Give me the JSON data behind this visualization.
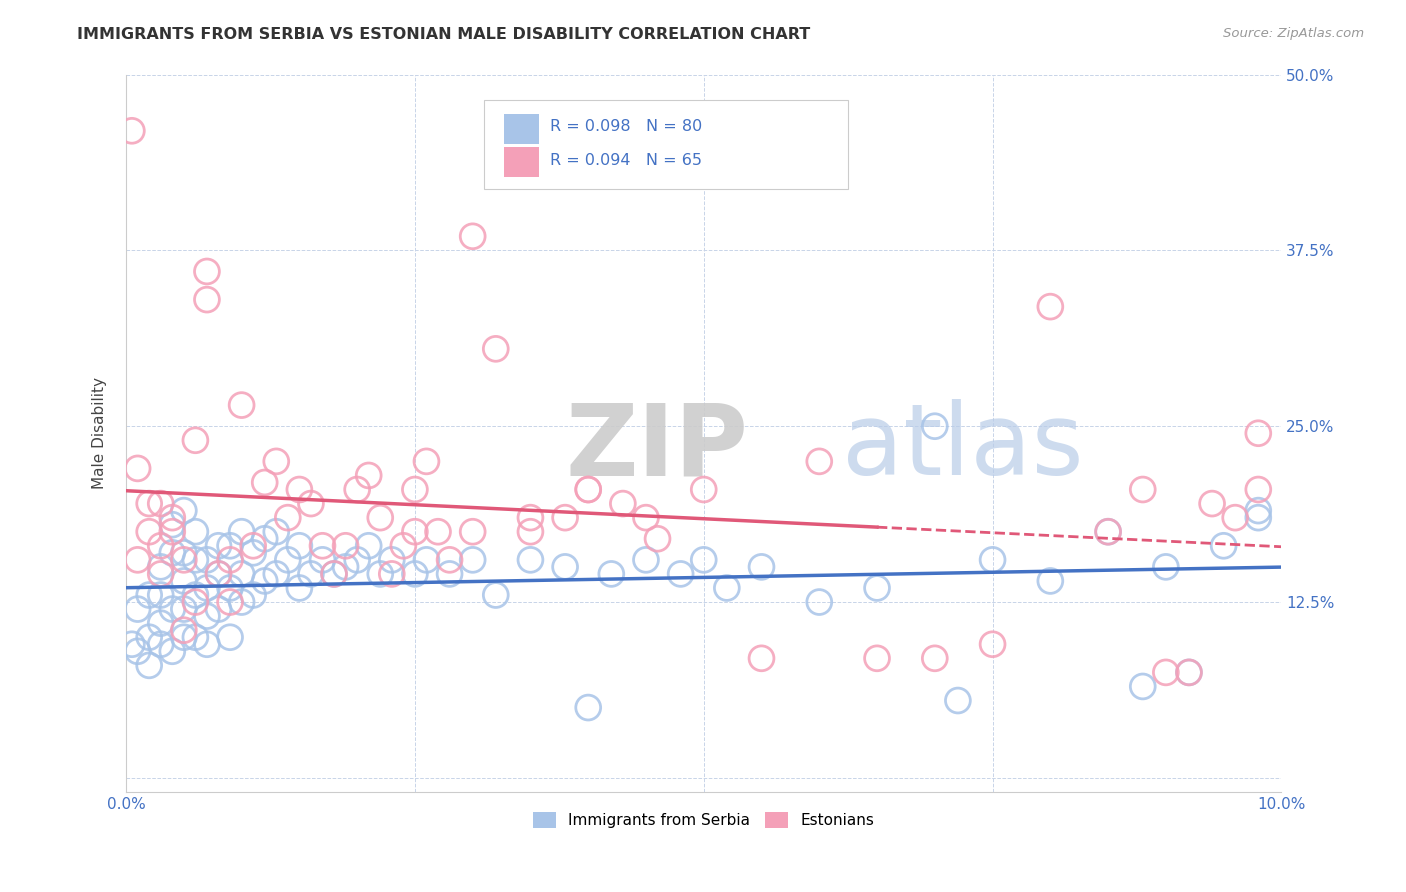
{
  "title": "IMMIGRANTS FROM SERBIA VS ESTONIAN MALE DISABILITY CORRELATION CHART",
  "source": "Source: ZipAtlas.com",
  "ylabel": "Male Disability",
  "legend_label1": "Immigrants from Serbia",
  "legend_label2": "Estonians",
  "R1": 0.098,
  "N1": 80,
  "R2": 0.094,
  "N2": 65,
  "color1": "#a8c4e8",
  "color2": "#f4a0b8",
  "line_color1": "#4472c4",
  "line_color2": "#e05878",
  "x_min": 0.0,
  "x_max": 0.1,
  "y_min": -0.01,
  "y_max": 0.5,
  "x_ticks": [
    0.0,
    0.025,
    0.05,
    0.075,
    0.1
  ],
  "x_tick_labels": [
    "0.0%",
    "",
    "",
    "",
    "10.0%"
  ],
  "y_ticks": [
    0.0,
    0.125,
    0.25,
    0.375,
    0.5
  ],
  "y_tick_labels": [
    "",
    "12.5%",
    "25.0%",
    "37.5%",
    "50.0%"
  ],
  "background_color": "#ffffff",
  "grid_color": "#c8d4e8",
  "serbia_x": [
    0.0005,
    0.001,
    0.001,
    0.002,
    0.002,
    0.002,
    0.003,
    0.003,
    0.003,
    0.003,
    0.004,
    0.004,
    0.004,
    0.004,
    0.005,
    0.005,
    0.005,
    0.005,
    0.005,
    0.006,
    0.006,
    0.006,
    0.006,
    0.007,
    0.007,
    0.007,
    0.007,
    0.008,
    0.008,
    0.008,
    0.009,
    0.009,
    0.009,
    0.01,
    0.01,
    0.01,
    0.011,
    0.011,
    0.012,
    0.012,
    0.013,
    0.013,
    0.014,
    0.015,
    0.015,
    0.016,
    0.017,
    0.018,
    0.019,
    0.02,
    0.021,
    0.022,
    0.023,
    0.025,
    0.026,
    0.028,
    0.03,
    0.032,
    0.035,
    0.038,
    0.04,
    0.042,
    0.045,
    0.048,
    0.05,
    0.052,
    0.055,
    0.06,
    0.065,
    0.07,
    0.072,
    0.075,
    0.08,
    0.085,
    0.088,
    0.09,
    0.092,
    0.095,
    0.098,
    0.098
  ],
  "serbia_y": [
    0.095,
    0.09,
    0.12,
    0.08,
    0.1,
    0.13,
    0.095,
    0.11,
    0.13,
    0.15,
    0.09,
    0.12,
    0.16,
    0.18,
    0.1,
    0.12,
    0.14,
    0.16,
    0.19,
    0.13,
    0.1,
    0.155,
    0.175,
    0.095,
    0.115,
    0.135,
    0.155,
    0.12,
    0.145,
    0.165,
    0.1,
    0.135,
    0.165,
    0.125,
    0.145,
    0.175,
    0.13,
    0.16,
    0.14,
    0.17,
    0.145,
    0.175,
    0.155,
    0.135,
    0.165,
    0.145,
    0.155,
    0.145,
    0.15,
    0.155,
    0.165,
    0.145,
    0.155,
    0.145,
    0.155,
    0.145,
    0.155,
    0.13,
    0.155,
    0.15,
    0.05,
    0.145,
    0.155,
    0.145,
    0.155,
    0.135,
    0.15,
    0.125,
    0.135,
    0.25,
    0.055,
    0.155,
    0.14,
    0.175,
    0.065,
    0.15,
    0.075,
    0.165,
    0.185,
    0.19
  ],
  "estonian_x": [
    0.0005,
    0.001,
    0.001,
    0.002,
    0.002,
    0.003,
    0.003,
    0.003,
    0.004,
    0.004,
    0.005,
    0.005,
    0.006,
    0.006,
    0.007,
    0.007,
    0.008,
    0.009,
    0.009,
    0.01,
    0.011,
    0.012,
    0.013,
    0.014,
    0.015,
    0.016,
    0.017,
    0.018,
    0.019,
    0.02,
    0.021,
    0.022,
    0.023,
    0.024,
    0.025,
    0.026,
    0.027,
    0.028,
    0.03,
    0.032,
    0.035,
    0.038,
    0.04,
    0.043,
    0.046,
    0.05,
    0.055,
    0.06,
    0.065,
    0.07,
    0.075,
    0.08,
    0.085,
    0.088,
    0.09,
    0.092,
    0.094,
    0.096,
    0.098,
    0.098,
    0.025,
    0.03,
    0.035,
    0.04,
    0.045
  ],
  "estonian_y": [
    0.46,
    0.22,
    0.155,
    0.175,
    0.195,
    0.145,
    0.165,
    0.195,
    0.175,
    0.185,
    0.155,
    0.105,
    0.24,
    0.125,
    0.36,
    0.34,
    0.145,
    0.155,
    0.125,
    0.265,
    0.165,
    0.21,
    0.225,
    0.185,
    0.205,
    0.195,
    0.165,
    0.145,
    0.165,
    0.205,
    0.215,
    0.185,
    0.145,
    0.165,
    0.205,
    0.225,
    0.175,
    0.155,
    0.385,
    0.305,
    0.175,
    0.185,
    0.205,
    0.195,
    0.17,
    0.205,
    0.085,
    0.225,
    0.085,
    0.085,
    0.095,
    0.335,
    0.175,
    0.205,
    0.075,
    0.075,
    0.195,
    0.185,
    0.205,
    0.245,
    0.175,
    0.175,
    0.185,
    0.205,
    0.185
  ]
}
